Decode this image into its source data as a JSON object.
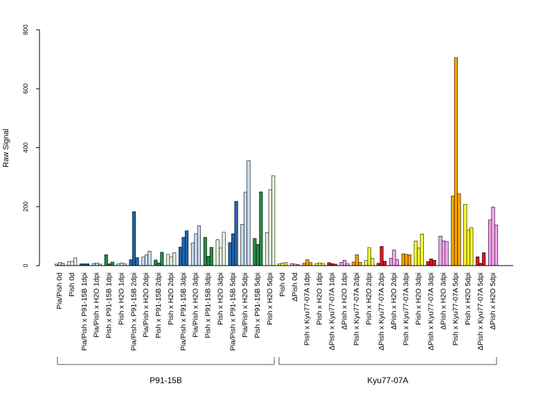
{
  "chart_data": {
    "type": "bar",
    "ylabel": "Raw Signal",
    "ylim": [
      0,
      800
    ],
    "yticks": [
      0,
      200,
      400,
      600,
      800
    ],
    "groups": [
      {
        "label": "P91-15B",
        "from": 0,
        "to": 18
      },
      {
        "label": "Kyu77-07A",
        "from": 18,
        "to": 35
      }
    ],
    "categories": [
      {
        "label": "Pia/Pish 0d",
        "color": "#c6dbef",
        "values": [
          5,
          10,
          8
        ]
      },
      {
        "label": "Pish 0d",
        "color": "#e5f5e0",
        "values": [
          14,
          14,
          26
        ]
      },
      {
        "label": "Pia/Pish x P91-15B 1dpi",
        "color": "#2166ac",
        "values": [
          6,
          6,
          6
        ]
      },
      {
        "label": "Pia/Pish x H2O 1dpi",
        "color": "#c6dbef",
        "values": [
          7,
          9,
          5
        ]
      },
      {
        "label": "Pish x P91-15B 1dpi",
        "color": "#238b45",
        "values": [
          37,
          6,
          12
        ]
      },
      {
        "label": "Pish x H2O 1dpi",
        "color": "#e5f5e0",
        "values": [
          6,
          9,
          6
        ]
      },
      {
        "label": "Pia/Pish x P91-15B 2dpi",
        "color": "#2166ac",
        "values": [
          20,
          183,
          27
        ]
      },
      {
        "label": "Pia/Pish x H2O 2dpi",
        "color": "#c6dbef",
        "values": [
          29,
          36,
          49
        ]
      },
      {
        "label": "Pish x P91-15B 2dpi",
        "color": "#238b45",
        "values": [
          19,
          9,
          45
        ]
      },
      {
        "label": "Pish x H2O 2dpi",
        "color": "#e5f5e0",
        "values": [
          38,
          29,
          44
        ]
      },
      {
        "label": "Pia/Pish x P91-15B 3dpi",
        "color": "#2166ac",
        "values": [
          63,
          96,
          118
        ]
      },
      {
        "label": "Pia/Pish x H2O 3dpi",
        "color": "#c6dbef",
        "values": [
          77,
          108,
          135
        ]
      },
      {
        "label": "Pish x P91-15B 3dpi",
        "color": "#238b45",
        "values": [
          96,
          32,
          62
        ]
      },
      {
        "label": "Pish x H2O 3dpi",
        "color": "#e5f5e0",
        "values": [
          88,
          60,
          113
        ]
      },
      {
        "label": "Pia/Pish x P91-15B 5dpi",
        "color": "#2166ac",
        "values": [
          78,
          108,
          218
        ]
      },
      {
        "label": "Pia/Pish x H2O 5dpi",
        "color": "#c6dbef",
        "values": [
          140,
          249,
          356
        ]
      },
      {
        "label": "Pish x P91-15B 5dpi",
        "color": "#238b45",
        "values": [
          92,
          72,
          250
        ]
      },
      {
        "label": "Pish x H2O 5dpi",
        "color": "#e5f5e0",
        "values": [
          112,
          257,
          305
        ]
      },
      {
        "label": "Pish 0d",
        "color": "#ffff33",
        "values": [
          6,
          8,
          10
        ]
      },
      {
        "label": "ΔPish 0d",
        "color": "#f9a3f0",
        "values": [
          7,
          5,
          3
        ]
      },
      {
        "label": "Pish x Kyu77-07A 1dpi",
        "color": "#ffa500",
        "values": [
          8,
          20,
          10
        ]
      },
      {
        "label": "Pish x H2O 1dpi",
        "color": "#ffff33",
        "values": [
          7,
          9,
          7
        ]
      },
      {
        "label": "ΔPish x Kyu77-07A 1dpi",
        "color": "#d7191c",
        "values": [
          10,
          7,
          5
        ]
      },
      {
        "label": "ΔPish x H2O 1dpi",
        "color": "#f9a3f0",
        "values": [
          11,
          18,
          7
        ]
      },
      {
        "label": "Pish x Kyu77-07A 2dpi",
        "color": "#ffa500",
        "values": [
          12,
          37,
          11
        ]
      },
      {
        "label": "Pish x H2O 2dpi",
        "color": "#ffff33",
        "values": [
          17,
          61,
          24
        ]
      },
      {
        "label": "ΔPish x Kyu77-07A 2dpi",
        "color": "#d7191c",
        "values": [
          8,
          65,
          15
        ]
      },
      {
        "label": "ΔPish x H2O 2dpi",
        "color": "#f9a3f0",
        "values": [
          25,
          53,
          21
        ]
      },
      {
        "label": "Pish x Kyu77-07A 3dpi",
        "color": "#ffa500",
        "values": [
          40,
          38,
          37
        ]
      },
      {
        "label": "Pish x H2O 3dpi",
        "color": "#ffff33",
        "values": [
          83,
          60,
          107
        ]
      },
      {
        "label": "ΔPish x Kyu77-07A 3dpi",
        "color": "#d7191c",
        "values": [
          14,
          23,
          18
        ]
      },
      {
        "label": "ΔPish x H2O 3dpi",
        "color": "#f9a3f0",
        "values": [
          100,
          84,
          82
        ]
      },
      {
        "label": "Pish x Kyu77-07A 5dpi",
        "color": "#ffa500",
        "values": [
          236,
          705,
          244
        ]
      },
      {
        "label": "Pish x H2O 5dpi",
        "color": "#ffff33",
        "values": [
          208,
          121,
          129
        ]
      },
      {
        "label": "ΔPish x Kyu77-07A 5dpi",
        "color": "#d7191c",
        "values": [
          30,
          8,
          44
        ]
      },
      {
        "label": "ΔPish x H2O 5dpi",
        "color": "#f9a3f0",
        "values": [
          155,
          199,
          138
        ]
      }
    ]
  }
}
